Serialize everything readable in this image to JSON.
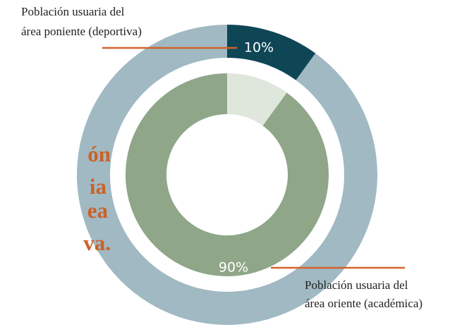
{
  "chart_data": {
    "type": "donut",
    "series": [
      {
        "values": [
          10,
          90
        ],
        "colors": [
          "#0e4656",
          "#a0b9c2"
        ],
        "value_labels": [
          "10%",
          null
        ]
      },
      {
        "values": [
          10,
          90
        ],
        "colors": [
          "#dfe6db",
          "#8fa689"
        ],
        "value_labels": [
          null,
          "90%"
        ]
      }
    ],
    "annotations": [
      {
        "lines": [
          "Población usuaria del",
          "área poniente (deportiva)"
        ]
      },
      {
        "lines": [
          "Población usuaria del",
          "área oriente (académica)"
        ]
      }
    ],
    "side_text": [
      "ón",
      "ia",
      "ea",
      "va."
    ]
  }
}
